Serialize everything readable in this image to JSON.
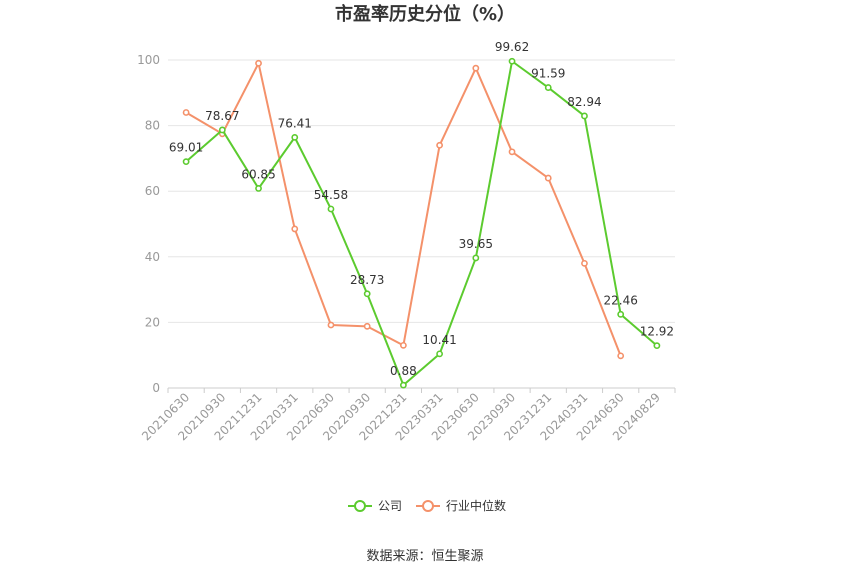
{
  "chart_data": {
    "type": "line",
    "title": "市盈率历史分位（%）",
    "source": "数据来源：恒生聚源",
    "x": [
      "20210630",
      "20210930",
      "20211231",
      "20220331",
      "20220630",
      "20220930",
      "20221231",
      "20230331",
      "20230630",
      "20230930",
      "20231231",
      "20240331",
      "20240630",
      "20240829"
    ],
    "ylim": [
      0,
      100
    ],
    "yticks": [
      0,
      20,
      40,
      60,
      80,
      100
    ],
    "grid": true,
    "legend_position": "bottom",
    "series": [
      {
        "name": "公司",
        "color": "#5ccb2f",
        "values": [
          69.01,
          78.67,
          60.85,
          76.41,
          54.58,
          28.73,
          0.88,
          10.41,
          39.65,
          99.62,
          91.59,
          82.94,
          22.46,
          12.92
        ],
        "labels": [
          "69.01",
          "78.67",
          "60.85",
          "76.41",
          "54.58",
          "28.73",
          "0.88",
          "10.41",
          "39.65",
          "99.62",
          "91.59",
          "82.94",
          "22.46",
          "12.92"
        ]
      },
      {
        "name": "行业中位数",
        "color": "#f4916a",
        "values": [
          84,
          77.5,
          99,
          48.5,
          19.2,
          18.8,
          13,
          74,
          97.5,
          72,
          64,
          38,
          9.8,
          null
        ]
      }
    ]
  }
}
